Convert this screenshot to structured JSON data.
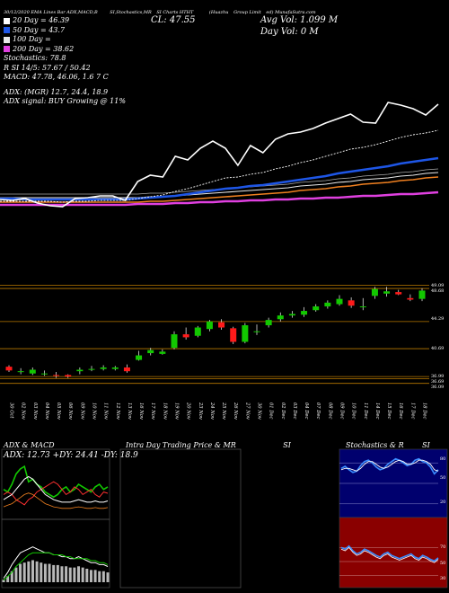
{
  "header": {
    "top_line_a": "30/12/2020 EMA Lines",
    "top_line_b": "Bar",
    "top_line_c": "ADX,MACD,B",
    "top_line_d": "SI,Stochastics,MR",
    "top_line_e": "SI Charts HTHT",
    "top_line_f": "(Huazhu",
    "top_line_g": "Group Limit",
    "top_line_h": "ed) MunafaSutra.com",
    "close_label": "CL: 47.55",
    "avg_vol": "Avg Vol: 1.099 M",
    "day_vol": "Day Vol: 0   M",
    "ema_lines": [
      {
        "label": "20  Day = 46.39",
        "color": "#ffffff"
      },
      {
        "label": "50  Day = 43.7",
        "color": "#1e56e6"
      },
      {
        "label": "100  Day =",
        "color": "#e8e8e8"
      },
      {
        "label": "200  Day = 38.62",
        "color": "#e040e0"
      }
    ],
    "stats": [
      "Stochastics: 78.8",
      "R                SI 14/5: 57.67 / 50.42",
      "MACD: 47.78, 46.06, 1.6 7 C"
    ],
    "adx_line": "ADX:                              (MGR) 12.7,  24.4,  18.9",
    "adx_signal": "ADX  signal:                                        BUY Growing @ 11%"
  },
  "colors": {
    "ema20": "#ffffff",
    "ema50": "#1e56e6",
    "ema100": "#e8e8e8",
    "ema200": "#e040e0",
    "orange": "#f08020",
    "up_candle": "#12c800",
    "down_candle": "#ff1a1a",
    "level_line": "#b87800",
    "stoch_bg": "#00006e",
    "rsi_bg": "#8a0000"
  },
  "price_levels": [
    "49.09",
    "48.68",
    "44.29",
    "40.69",
    "36.99",
    "36.69",
    "36.09"
  ],
  "chart_data": {
    "type": "candlestick",
    "x": [
      "30 Oct",
      "02 Nov",
      "03 Nov",
      "04 Nov",
      "05 Nov",
      "06 Nov",
      "09 Nov",
      "10 Nov",
      "11 Nov",
      "12 Nov",
      "13 Nov",
      "16 Nov",
      "17 Nov",
      "18 Nov",
      "19 Nov",
      "20 Nov",
      "23 Nov",
      "24 Nov",
      "25 Nov",
      "26 Nov",
      "27 Nov",
      "30 Nov",
      "01 Dec",
      "02 Dec",
      "03 Dec",
      "04 Dec",
      "07 Dec",
      "08 Dec",
      "09 Dec",
      "10 Dec",
      "11 Dec",
      "14 Dec",
      "15 Dec",
      "16 Dec",
      "17 Dec",
      "18 Dec"
    ],
    "open": [
      38.3,
      37.6,
      37.4,
      37.4,
      37.2,
      37.2,
      37.7,
      37.9,
      38.0,
      38.0,
      38.2,
      39.2,
      40.1,
      40.0,
      40.8,
      42.6,
      42.4,
      43.3,
      44.2,
      43.4,
      41.6,
      42.9,
      43.8,
      44.6,
      45.1,
      45.2,
      45.8,
      46.3,
      46.6,
      47.1,
      46.2,
      47.7,
      48.0,
      48.2,
      47.4,
      47.3
    ],
    "close": [
      37.8,
      37.7,
      37.9,
      37.4,
      37.1,
      37.0,
      37.9,
      38.0,
      38.2,
      38.2,
      37.7,
      39.8,
      40.5,
      40.3,
      42.6,
      42.2,
      43.5,
      44.3,
      43.5,
      41.6,
      43.8,
      43.0,
      44.5,
      45.1,
      45.3,
      45.7,
      46.3,
      46.8,
      47.3,
      46.4,
      46.3,
      48.6,
      48.3,
      47.9,
      47.2,
      48.4
    ],
    "high": [
      38.5,
      38.1,
      38.2,
      37.8,
      37.6,
      37.3,
      38.2,
      38.4,
      38.5,
      38.4,
      38.6,
      40.4,
      40.8,
      40.6,
      43.0,
      43.5,
      43.7,
      44.5,
      44.6,
      43.6,
      44.1,
      43.9,
      44.8,
      45.5,
      45.7,
      46.2,
      46.6,
      47.1,
      47.8,
      47.5,
      47.4,
      48.9,
      48.9,
      48.5,
      47.9,
      48.7
    ],
    "low": [
      37.6,
      37.3,
      37.2,
      37.1,
      36.8,
      36.8,
      37.3,
      37.7,
      37.8,
      37.8,
      37.5,
      39.1,
      39.8,
      39.9,
      40.6,
      41.9,
      42.2,
      43.0,
      43.2,
      41.3,
      41.4,
      42.5,
      43.5,
      44.3,
      44.8,
      44.9,
      45.6,
      46.0,
      46.4,
      46.1,
      45.8,
      47.3,
      47.6,
      47.8,
      47.0,
      47.0
    ],
    "ema20": [
      37.6,
      37.6,
      37.6,
      37.6,
      37.6,
      37.5,
      37.6,
      37.6,
      37.7,
      37.7,
      37.7,
      37.9,
      38.1,
      38.3,
      38.7,
      39.0,
      39.4,
      39.8,
      40.2,
      40.3,
      40.6,
      40.8,
      41.2,
      41.5,
      41.9,
      42.2,
      42.6,
      43.0,
      43.4,
      43.6,
      43.9,
      44.3,
      44.7,
      45.0,
      45.2,
      45.5
    ],
    "ema50": [
      37.9,
      37.9,
      37.8,
      37.8,
      37.8,
      37.8,
      37.8,
      37.8,
      37.8,
      37.8,
      37.8,
      37.9,
      38.0,
      38.1,
      38.2,
      38.4,
      38.6,
      38.8,
      39.0,
      39.1,
      39.3,
      39.4,
      39.6,
      39.8,
      40.0,
      40.2,
      40.4,
      40.7,
      40.9,
      41.1,
      41.3,
      41.5,
      41.8,
      42.0,
      42.2,
      42.4
    ],
    "ema100": [
      38.0,
      38.0,
      38.0,
      38.0,
      38.0,
      38.0,
      38.0,
      38.0,
      38.0,
      38.0,
      38.0,
      38.0,
      38.1,
      38.1,
      38.2,
      38.3,
      38.4,
      38.5,
      38.6,
      38.7,
      38.8,
      38.9,
      39.0,
      39.1,
      39.3,
      39.4,
      39.5,
      39.7,
      39.8,
      40.0,
      40.1,
      40.2,
      40.4,
      40.5,
      40.7,
      40.8
    ],
    "ema200": [
      37.2,
      37.2,
      37.2,
      37.2,
      37.2,
      37.2,
      37.2,
      37.2,
      37.2,
      37.2,
      37.2,
      37.3,
      37.3,
      37.3,
      37.4,
      37.4,
      37.5,
      37.5,
      37.6,
      37.6,
      37.7,
      37.7,
      37.8,
      37.8,
      37.9,
      37.9,
      38.0,
      38.0,
      38.1,
      38.2,
      38.2,
      38.3,
      38.4,
      38.4,
      38.5,
      38.6
    ],
    "ema_ylim": [
      30,
      50
    ],
    "ylim": [
      34.5,
      50
    ],
    "sub_panels": [
      {
        "title_a": "ADX  & MACD",
        "label": "ADX: 12.73 +DY: 24.41 -DY: 18.9"
      },
      {
        "title_a": "Intra  Day Trading Price  & MR",
        "title_b": "SI"
      },
      {
        "title_a": "Stochastics & R",
        "title_b": "SI",
        "levels": [
          "80",
          "50",
          "20"
        ]
      },
      {
        "levels_rsi": [
          "70",
          "50",
          "30"
        ]
      }
    ],
    "stoch_k": [
      72,
      75,
      70,
      66,
      68,
      76,
      82,
      84,
      80,
      74,
      70,
      72,
      78,
      82,
      86,
      84,
      80,
      76,
      78,
      84,
      86,
      82,
      80,
      74,
      64,
      70
    ],
    "stoch_d": [
      70,
      72,
      72,
      70,
      68,
      72,
      78,
      82,
      82,
      78,
      74,
      72,
      74,
      78,
      82,
      84,
      82,
      78,
      78,
      80,
      84,
      84,
      82,
      78,
      70,
      68
    ],
    "rsi": [
      62,
      60,
      64,
      58,
      54,
      56,
      60,
      58,
      55,
      52,
      50,
      54,
      56,
      52,
      50,
      48,
      50,
      52,
      54,
      50,
      48,
      52,
      50,
      47,
      45,
      49
    ],
    "adx_plus": [
      22,
      20,
      26,
      34,
      38,
      40,
      28,
      30,
      26,
      24,
      20,
      18,
      16,
      18,
      22,
      24,
      20,
      22,
      26,
      24,
      22,
      20,
      24,
      26,
      22,
      24
    ],
    "adx_minus": [
      18,
      20,
      18,
      14,
      12,
      10,
      14,
      16,
      20,
      22,
      24,
      26,
      28,
      26,
      22,
      18,
      20,
      24,
      22,
      18,
      20,
      22,
      18,
      16,
      20,
      19
    ],
    "adx": [
      14,
      16,
      18,
      22,
      26,
      30,
      32,
      30,
      26,
      22,
      18,
      16,
      14,
      13,
      12,
      12,
      12,
      13,
      14,
      13,
      12,
      12,
      13,
      12,
      12,
      13
    ],
    "macd": [
      0.2,
      0.5,
      0.9,
      1.2,
      1.5,
      1.6,
      1.7,
      1.8,
      1.7,
      1.6,
      1.5,
      1.5,
      1.4,
      1.4,
      1.3,
      1.3,
      1.2,
      1.2,
      1.3,
      1.2,
      1.1,
      1.0,
      1.0,
      0.9,
      0.9,
      0.8
    ],
    "macd_signal": [
      0.1,
      0.3,
      0.5,
      0.8,
      1.0,
      1.2,
      1.4,
      1.5,
      1.5,
      1.5,
      1.5,
      1.5,
      1.4,
      1.4,
      1.4,
      1.3,
      1.3,
      1.2,
      1.2,
      1.2,
      1.2,
      1.1,
      1.1,
      1.0,
      1.0,
      0.9
    ]
  }
}
